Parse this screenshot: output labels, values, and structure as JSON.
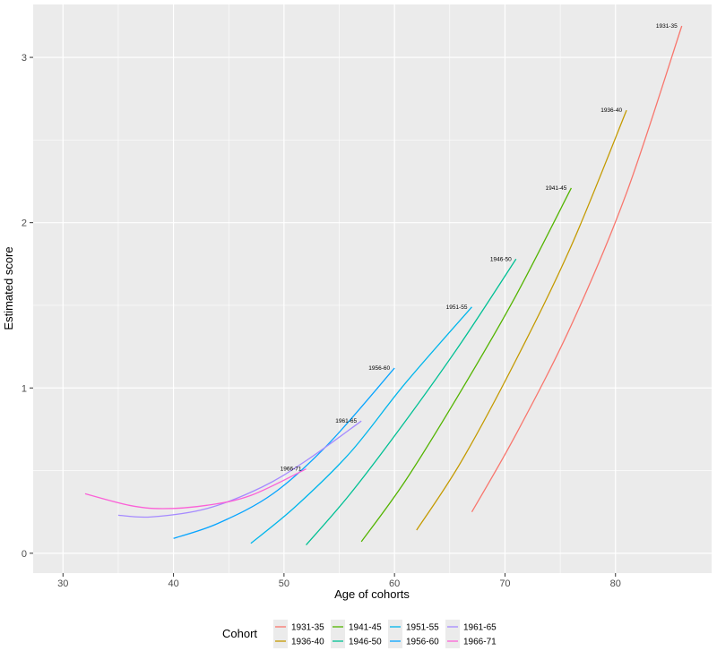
{
  "chart_data": {
    "type": "line",
    "xlabel": "Age of cohorts",
    "ylabel": "Estimated score",
    "xlim": [
      27.3,
      88.7
    ],
    "ylim": [
      -0.12,
      3.32
    ],
    "x_ticks": [
      30,
      40,
      50,
      60,
      70,
      80
    ],
    "y_ticks": [
      0,
      1,
      2,
      3
    ],
    "grid": true,
    "legend": {
      "title": "Cohort",
      "position": "bottom",
      "columns": 5
    },
    "series": [
      {
        "name": "1931-35",
        "color": "#F8766D",
        "end_label": "1931-35",
        "points": [
          [
            67,
            0.25
          ],
          [
            71,
            0.72
          ],
          [
            76,
            1.38
          ],
          [
            81,
            2.18
          ],
          [
            86,
            3.19
          ]
        ]
      },
      {
        "name": "1936-40",
        "color": "#C49A00",
        "end_label": "1936-40",
        "points": [
          [
            62,
            0.14
          ],
          [
            66,
            0.55
          ],
          [
            71,
            1.17
          ],
          [
            76,
            1.86
          ],
          [
            81,
            2.68
          ]
        ]
      },
      {
        "name": "1941-45",
        "color": "#53B400",
        "end_label": "1941-45",
        "points": [
          [
            57,
            0.07
          ],
          [
            61,
            0.44
          ],
          [
            66,
            0.98
          ],
          [
            71,
            1.56
          ],
          [
            76,
            2.21
          ]
        ]
      },
      {
        "name": "1946-50",
        "color": "#00C094",
        "end_label": "1946-50",
        "points": [
          [
            52,
            0.05
          ],
          [
            56,
            0.36
          ],
          [
            61,
            0.8
          ],
          [
            66,
            1.27
          ],
          [
            71,
            1.78
          ]
        ]
      },
      {
        "name": "1951-55",
        "color": "#00B6EB",
        "end_label": "1951-55",
        "points": [
          [
            47,
            0.06
          ],
          [
            51,
            0.28
          ],
          [
            56,
            0.61
          ],
          [
            61,
            1.03
          ],
          [
            67,
            1.49
          ]
        ]
      },
      {
        "name": "1956-60",
        "color": "#06A4FF",
        "end_label": "1956-60",
        "points": [
          [
            40,
            0.09
          ],
          [
            44,
            0.18
          ],
          [
            49,
            0.36
          ],
          [
            54,
            0.66
          ],
          [
            60,
            1.12
          ]
        ]
      },
      {
        "name": "1961-65",
        "color": "#A58AFF",
        "end_label": "1961-65",
        "points": [
          [
            35,
            0.23
          ],
          [
            38,
            0.22
          ],
          [
            43,
            0.27
          ],
          [
            48,
            0.4
          ],
          [
            52,
            0.56
          ],
          [
            57,
            0.8
          ]
        ]
      },
      {
        "name": "1966-71",
        "color": "#FB61D7",
        "end_label": "1966-71",
        "points": [
          [
            32,
            0.36
          ],
          [
            36,
            0.29
          ],
          [
            39,
            0.27
          ],
          [
            43,
            0.29
          ],
          [
            47,
            0.35
          ],
          [
            52,
            0.51
          ]
        ]
      }
    ]
  }
}
